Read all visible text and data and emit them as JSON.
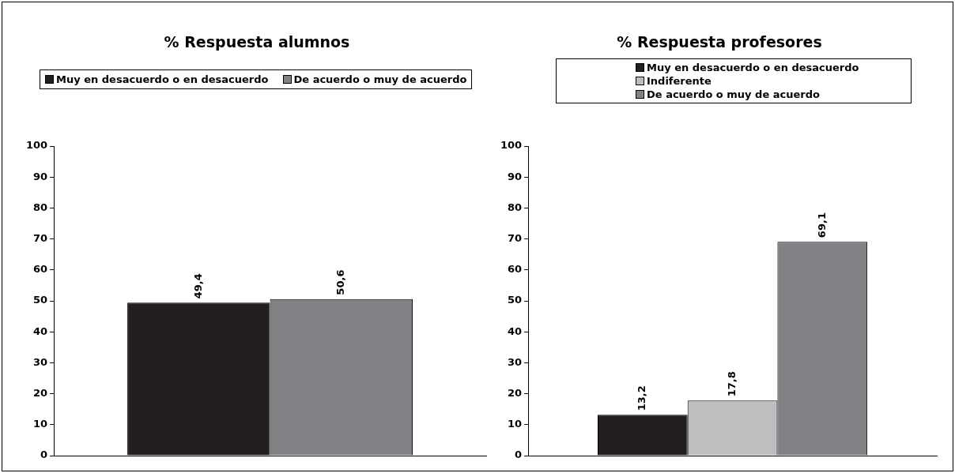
{
  "chart_data": [
    {
      "type": "bar",
      "title": "% Respuesta alumnos",
      "categories": [
        null
      ],
      "series": [
        {
          "name": "Muy en desacuerdo o en desacuerdo",
          "color": "#231f20",
          "values": [
            49.4
          ],
          "value_labels": [
            "49,4"
          ]
        },
        {
          "name": "De acuerdo o muy de acuerdo",
          "color": "#808285",
          "values": [
            50.6
          ],
          "value_labels": [
            "50,6"
          ]
        }
      ],
      "ylim": [
        0,
        100
      ],
      "yticks": [
        0,
        10,
        20,
        30,
        40,
        50,
        60,
        70,
        80,
        90,
        100
      ],
      "grid": false,
      "legend": "top"
    },
    {
      "type": "bar",
      "title": "% Respuesta profesores",
      "categories": [
        null
      ],
      "series": [
        {
          "name": "Muy en desacuerdo o en desacuerdo",
          "color": "#231f20",
          "values": [
            13.2
          ],
          "value_labels": [
            "13,2"
          ]
        },
        {
          "name": "Indiferente",
          "color": "#bcbec0",
          "values": [
            17.8
          ],
          "value_labels": [
            "17,8"
          ]
        },
        {
          "name": "De acuerdo o muy de acuerdo",
          "color": "#808285",
          "values": [
            69.1
          ],
          "value_labels": [
            "69,1"
          ]
        }
      ],
      "ylim": [
        0,
        100
      ],
      "yticks": [
        0,
        10,
        20,
        30,
        40,
        50,
        60,
        70,
        80,
        90,
        100
      ],
      "grid": false,
      "legend": "top"
    }
  ]
}
